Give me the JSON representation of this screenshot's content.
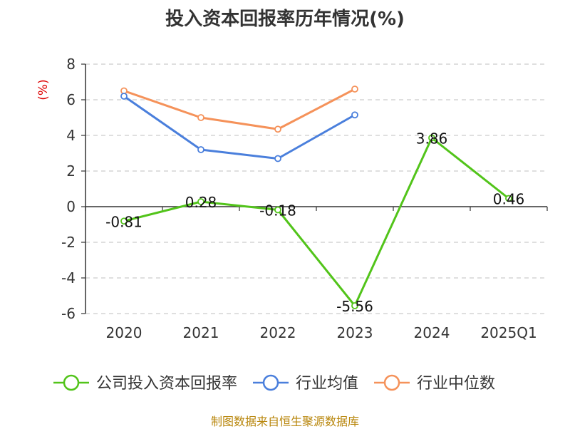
{
  "chart_data": {
    "type": "line",
    "title": "投入资本回报率历年情况(%)",
    "ylabel": "(%)",
    "xlabel": "",
    "categories": [
      "2020",
      "2021",
      "2022",
      "2023",
      "2024",
      "2025Q1"
    ],
    "ylim": [
      -6,
      8
    ],
    "yticks": [
      8,
      6,
      4,
      2,
      0,
      -2,
      -4,
      -6
    ],
    "grid": true,
    "legend_position": "bottom",
    "series": [
      {
        "name": "公司投入资本回报率",
        "color": "#52c41a",
        "values": [
          -0.81,
          0.28,
          -0.18,
          -5.56,
          3.86,
          0.46
        ],
        "data_labels": [
          "-0.81",
          "0.28",
          "-0.18",
          "-5.56",
          "3.86",
          "0.46"
        ]
      },
      {
        "name": "行业均值",
        "color": "#4a7fdc",
        "values": [
          6.2,
          3.2,
          2.7,
          5.15,
          null,
          null
        ]
      },
      {
        "name": "行业中位数",
        "color": "#f5925a",
        "values": [
          6.5,
          5.0,
          4.35,
          6.6,
          null,
          null
        ]
      }
    ]
  },
  "footer": {
    "source": "制图数据来自恒生聚源数据库"
  }
}
